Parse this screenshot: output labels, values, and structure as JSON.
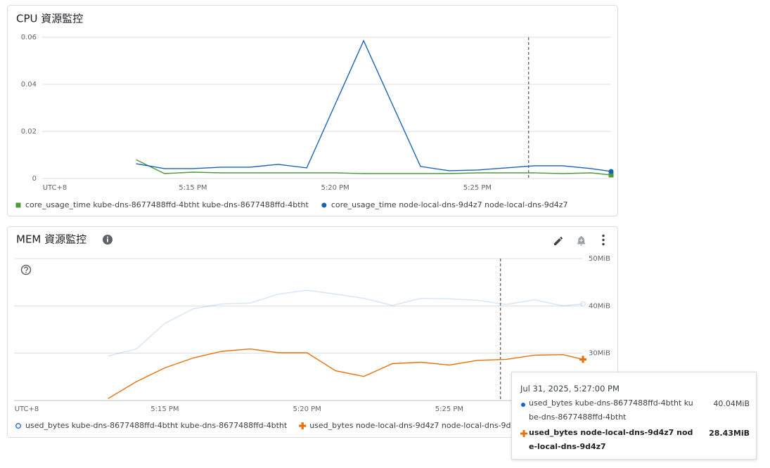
{
  "chart_data": [
    {
      "type": "line",
      "title": "CPU 資源監控",
      "timezone_label": "UTC+8",
      "x": [
        13,
        14,
        15,
        16,
        17,
        18,
        19,
        20,
        21,
        22,
        23,
        24,
        25,
        26,
        27,
        28,
        29,
        29.7
      ],
      "xlim": [
        9.7,
        29.7
      ],
      "xticks": [
        {
          "value": 15,
          "label": "5:15 PM"
        },
        {
          "value": 20,
          "label": "5:20 PM"
        },
        {
          "value": 25,
          "label": "5:25 PM"
        }
      ],
      "ylim": [
        0,
        0.06
      ],
      "yticks": [
        0,
        0.02,
        0.04,
        0.06
      ],
      "grid": true,
      "cursor_x": 26.8,
      "series": [
        {
          "name": "core_usage_time kube-dns-8677488ffd-4btht kube-dns-8677488ffd-4btht",
          "color": "#4f9a3b",
          "marker": "square",
          "values": [
            0.008,
            0.0021,
            0.0027,
            0.0024,
            0.0024,
            0.0024,
            0.0024,
            0.0024,
            0.0021,
            0.0021,
            0.0021,
            0.0021,
            0.0024,
            0.0024,
            0.0024,
            0.0021,
            0.0024,
            0.0015
          ]
        },
        {
          "name": "core_usage_time node-local-dns-9d4z7 node-local-dns-9d4z7",
          "color": "#1a62b8",
          "marker": "circle",
          "values": [
            0.0063,
            0.0042,
            0.0042,
            0.0048,
            0.0048,
            0.006,
            0.0045,
            0.0315,
            0.0585,
            0.0318,
            0.0051,
            0.0033,
            0.0036,
            0.0045,
            0.0054,
            0.0054,
            0.0042,
            0.003
          ]
        }
      ]
    },
    {
      "type": "line",
      "title": "MEM 資源監控",
      "timezone_label": "UTC+8",
      "x": [
        13,
        14,
        15,
        16,
        17,
        18,
        19,
        20,
        21,
        22,
        23,
        24,
        25,
        26,
        27,
        28,
        29,
        29.7
      ],
      "xlim": [
        9.7,
        29.7
      ],
      "xticks": [
        {
          "value": 15,
          "label": "5:15 PM"
        },
        {
          "value": 20,
          "label": "5:20 PM"
        },
        {
          "value": 25,
          "label": "5:25 PM"
        }
      ],
      "ylim": [
        20,
        50
      ],
      "yticks": [
        {
          "value": 30,
          "label": "30MiB"
        },
        {
          "value": 40,
          "label": "40MiB"
        },
        {
          "value": 50,
          "label": "50MiB"
        }
      ],
      "grid": true,
      "cursor_x": 26.8,
      "highlighted_series": 1,
      "series": [
        {
          "name": "used_bytes kube-dns-8677488ffd-4btht kube-dns-8677488ffd-4btht",
          "color": "#1967d2",
          "marker": "hollow-circle",
          "values": [
            29.4,
            30.9,
            36.3,
            39.4,
            40.4,
            40.6,
            42.5,
            43.3,
            42.5,
            41.6,
            40.1,
            41.6,
            41.5,
            41.2,
            40.3,
            41.3,
            40.0,
            40.4
          ]
        },
        {
          "name": "used_bytes node-local-dns-9d4z7 node-local-dns-9d4z7",
          "color": "#e8710a",
          "marker": "plus",
          "values": [
            20.4,
            24.0,
            26.9,
            29.0,
            30.4,
            30.9,
            30.1,
            30.1,
            26.3,
            25.1,
            27.8,
            28.1,
            27.5,
            28.5,
            28.7,
            29.6,
            29.7,
            28.7
          ]
        }
      ],
      "tooltip": {
        "time": "Jul 31, 2025, 5:27:00 PM",
        "values": [
          "40.04MiB",
          "28.43MiB"
        ]
      }
    }
  ]
}
